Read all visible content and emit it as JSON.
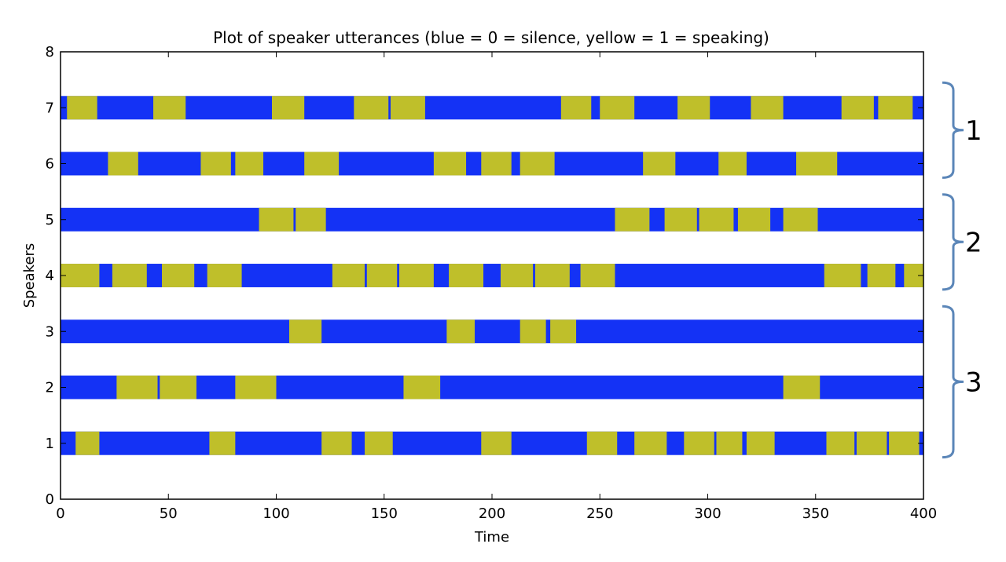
{
  "chart_data": {
    "type": "heatmap",
    "title": "Plot of speaker utterances (blue = 0 = silence, yellow = 1 = speaking)",
    "xlabel": "Time",
    "ylabel": "Speakers",
    "xlim": [
      0,
      400
    ],
    "ylim": [
      0,
      8
    ],
    "xticks": [
      "0",
      "50",
      "100",
      "150",
      "200",
      "250",
      "300",
      "350",
      "400"
    ],
    "yticks": [
      "0",
      "1",
      "2",
      "3",
      "4",
      "5",
      "6",
      "7",
      "8"
    ],
    "grid": false,
    "legend": "none",
    "colors": {
      "silence": "#1432f5",
      "speaking": "#bfbf2a"
    },
    "series": [
      {
        "speaker": 1,
        "speaking_intervals": [
          [
            7,
            18
          ],
          [
            69,
            81
          ],
          [
            121,
            135
          ],
          [
            141,
            154
          ],
          [
            195,
            209
          ],
          [
            244,
            258
          ],
          [
            266,
            281
          ],
          [
            289,
            303
          ],
          [
            304,
            316
          ],
          [
            318,
            331
          ],
          [
            355,
            368
          ],
          [
            369,
            383
          ],
          [
            384,
            398
          ]
        ]
      },
      {
        "speaker": 2,
        "speaking_intervals": [
          [
            26,
            45
          ],
          [
            46,
            63
          ],
          [
            81,
            100
          ],
          [
            159,
            176
          ],
          [
            335,
            352
          ]
        ]
      },
      {
        "speaker": 3,
        "speaking_intervals": [
          [
            106,
            121
          ],
          [
            179,
            192
          ],
          [
            213,
            225
          ],
          [
            227,
            239
          ]
        ]
      },
      {
        "speaker": 4,
        "speaking_intervals": [
          [
            0,
            18
          ],
          [
            24,
            40
          ],
          [
            47,
            62
          ],
          [
            68,
            84
          ],
          [
            126,
            141
          ],
          [
            142,
            156
          ],
          [
            157,
            173
          ],
          [
            180,
            196
          ],
          [
            204,
            219
          ],
          [
            220,
            236
          ],
          [
            241,
            257
          ],
          [
            354,
            371
          ],
          [
            374,
            387
          ],
          [
            391,
            400
          ]
        ]
      },
      {
        "speaker": 5,
        "speaking_intervals": [
          [
            92,
            108
          ],
          [
            109,
            123
          ],
          [
            257,
            273
          ],
          [
            280,
            295
          ],
          [
            296,
            312
          ],
          [
            314,
            329
          ],
          [
            335,
            351
          ]
        ]
      },
      {
        "speaker": 6,
        "speaking_intervals": [
          [
            22,
            36
          ],
          [
            65,
            79
          ],
          [
            81,
            94
          ],
          [
            113,
            129
          ],
          [
            173,
            188
          ],
          [
            195,
            209
          ],
          [
            213,
            229
          ],
          [
            270,
            285
          ],
          [
            305,
            318
          ],
          [
            341,
            360
          ]
        ]
      },
      {
        "speaker": 7,
        "speaking_intervals": [
          [
            3,
            17
          ],
          [
            43,
            58
          ],
          [
            98,
            113
          ],
          [
            136,
            152
          ],
          [
            153,
            169
          ],
          [
            232,
            246
          ],
          [
            250,
            266
          ],
          [
            286,
            301
          ],
          [
            320,
            335
          ],
          [
            362,
            377
          ],
          [
            379,
            395
          ]
        ]
      }
    ],
    "groups": [
      {
        "label": "1",
        "speakers": [
          6,
          7
        ]
      },
      {
        "label": "2",
        "speakers": [
          4,
          5
        ]
      },
      {
        "label": "3",
        "speakers": [
          1,
          2,
          3
        ]
      }
    ],
    "bracket_color": "#5b86b8"
  }
}
